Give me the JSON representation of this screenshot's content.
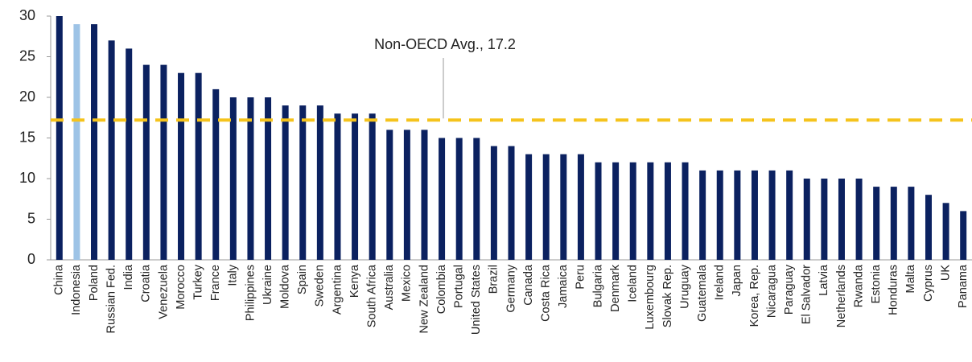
{
  "chart_data": {
    "type": "bar",
    "categories": [
      "China",
      "Indonesia",
      "Poland",
      "Russian Fed.",
      "India",
      "Croatia",
      "Venezuela",
      "Morocco",
      "Turkey",
      "France",
      "Italy",
      "Philippines",
      "Ukraine",
      "Moldova",
      "Spain",
      "Sweden",
      "Argentina",
      "Kenya",
      "South Africa",
      "Australia",
      "Mexico",
      "New Zealand",
      "Colombia",
      "Portugal",
      "United States",
      "Brazil",
      "Germany",
      "Canada",
      "Costa Rica",
      "Jamaica",
      "Peru",
      "Bulgaria",
      "Denmark",
      "Iceland",
      "Luxembourg",
      "Slovak Rep.",
      "Uruguay",
      "Guatemala",
      "Ireland",
      "Japan",
      "Korea, Rep.",
      "Nicaragua",
      "Paraguay",
      "El Salvador",
      "Latvia",
      "Netherlands",
      "Rwanda",
      "Estonia",
      "Honduras",
      "Malta",
      "Cyprus",
      "UK",
      "Panama"
    ],
    "values": [
      30,
      29,
      29,
      27,
      26,
      24,
      24,
      23,
      23,
      21,
      20,
      20,
      20,
      19,
      19,
      19,
      18,
      18,
      18,
      16,
      16,
      16,
      15,
      15,
      15,
      14,
      14,
      13,
      13,
      13,
      13,
      12,
      12,
      12,
      12,
      12,
      12,
      11,
      11,
      11,
      11,
      11,
      11,
      10,
      10,
      10,
      10,
      9,
      9,
      9,
      8,
      7,
      6
    ],
    "color": "#0b2160",
    "highlight": {
      "index": 1,
      "color": "#9dc3e6"
    },
    "ylim": [
      0,
      30
    ],
    "yticks": [
      0,
      5,
      10,
      15,
      20,
      25,
      30
    ],
    "grid": false,
    "reference_lines": [
      {
        "value": 17.2,
        "label": "Non-OECD Avg., 17.2",
        "color": "#f5c31c"
      }
    ]
  }
}
